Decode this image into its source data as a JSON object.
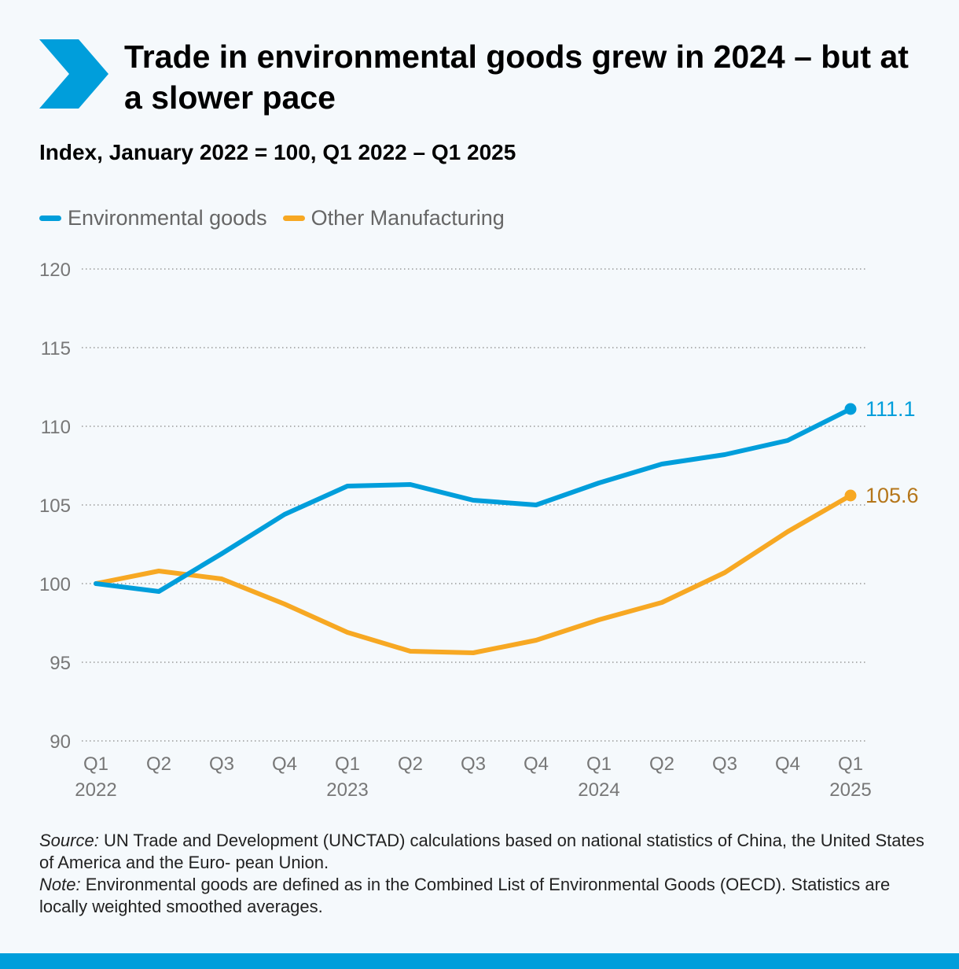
{
  "header": {
    "title": "Trade in environmental goods grew in 2024 – but at a slower pace",
    "subtitle": "Index, January 2022 = 100, Q1 2022 – Q1 2025"
  },
  "colors": {
    "accent": "#009edb",
    "environmental": "#009edb",
    "manufacturing": "#f7a823",
    "manufacturing_label": "#b5761a",
    "grid": "#9a9a9a",
    "axis_text": "#777777"
  },
  "chart_data": {
    "type": "line",
    "title": "Trade in environmental goods grew in 2024 – but at a slower pace",
    "subtitle": "Index, January 2022 = 100, Q1 2022 – Q1 2025",
    "x": [
      "Q1",
      "Q2",
      "Q3",
      "Q4",
      "Q1",
      "Q2",
      "Q3",
      "Q4",
      "Q1",
      "Q2",
      "Q3",
      "Q4",
      "Q1"
    ],
    "year_labels": [
      "2022",
      "",
      "",
      "",
      "2023",
      "",
      "",
      "",
      "2024",
      "",
      "",
      "",
      "2025"
    ],
    "yticks": [
      90,
      95,
      100,
      105,
      110,
      115,
      120
    ],
    "ylim": [
      90,
      120
    ],
    "grid": true,
    "legend_position": "top-left",
    "series": [
      {
        "name": "Environmental goods",
        "color": "#009edb",
        "values": [
          100.0,
          99.5,
          101.9,
          104.4,
          106.2,
          106.3,
          105.3,
          105.0,
          106.4,
          107.6,
          108.2,
          109.1,
          111.1
        ],
        "end_label": "111.1"
      },
      {
        "name": "Other Manufacturing",
        "color": "#f7a823",
        "values": [
          100.0,
          100.8,
          100.3,
          98.7,
          96.9,
          95.7,
          95.6,
          96.4,
          97.7,
          98.8,
          100.7,
          103.3,
          105.6
        ],
        "end_label": "105.6"
      }
    ]
  },
  "notes": {
    "source_label": "Source:",
    "source_text": " UN Trade and Development (UNCTAD) calculations based on national statistics of China, the United States of America and the Euro- pean Union.",
    "note_label": "Note:",
    "note_text": " Environmental goods are defined as in the Combined List of Environmental Goods (OECD). Statistics are locally weighted smoothed averages."
  }
}
